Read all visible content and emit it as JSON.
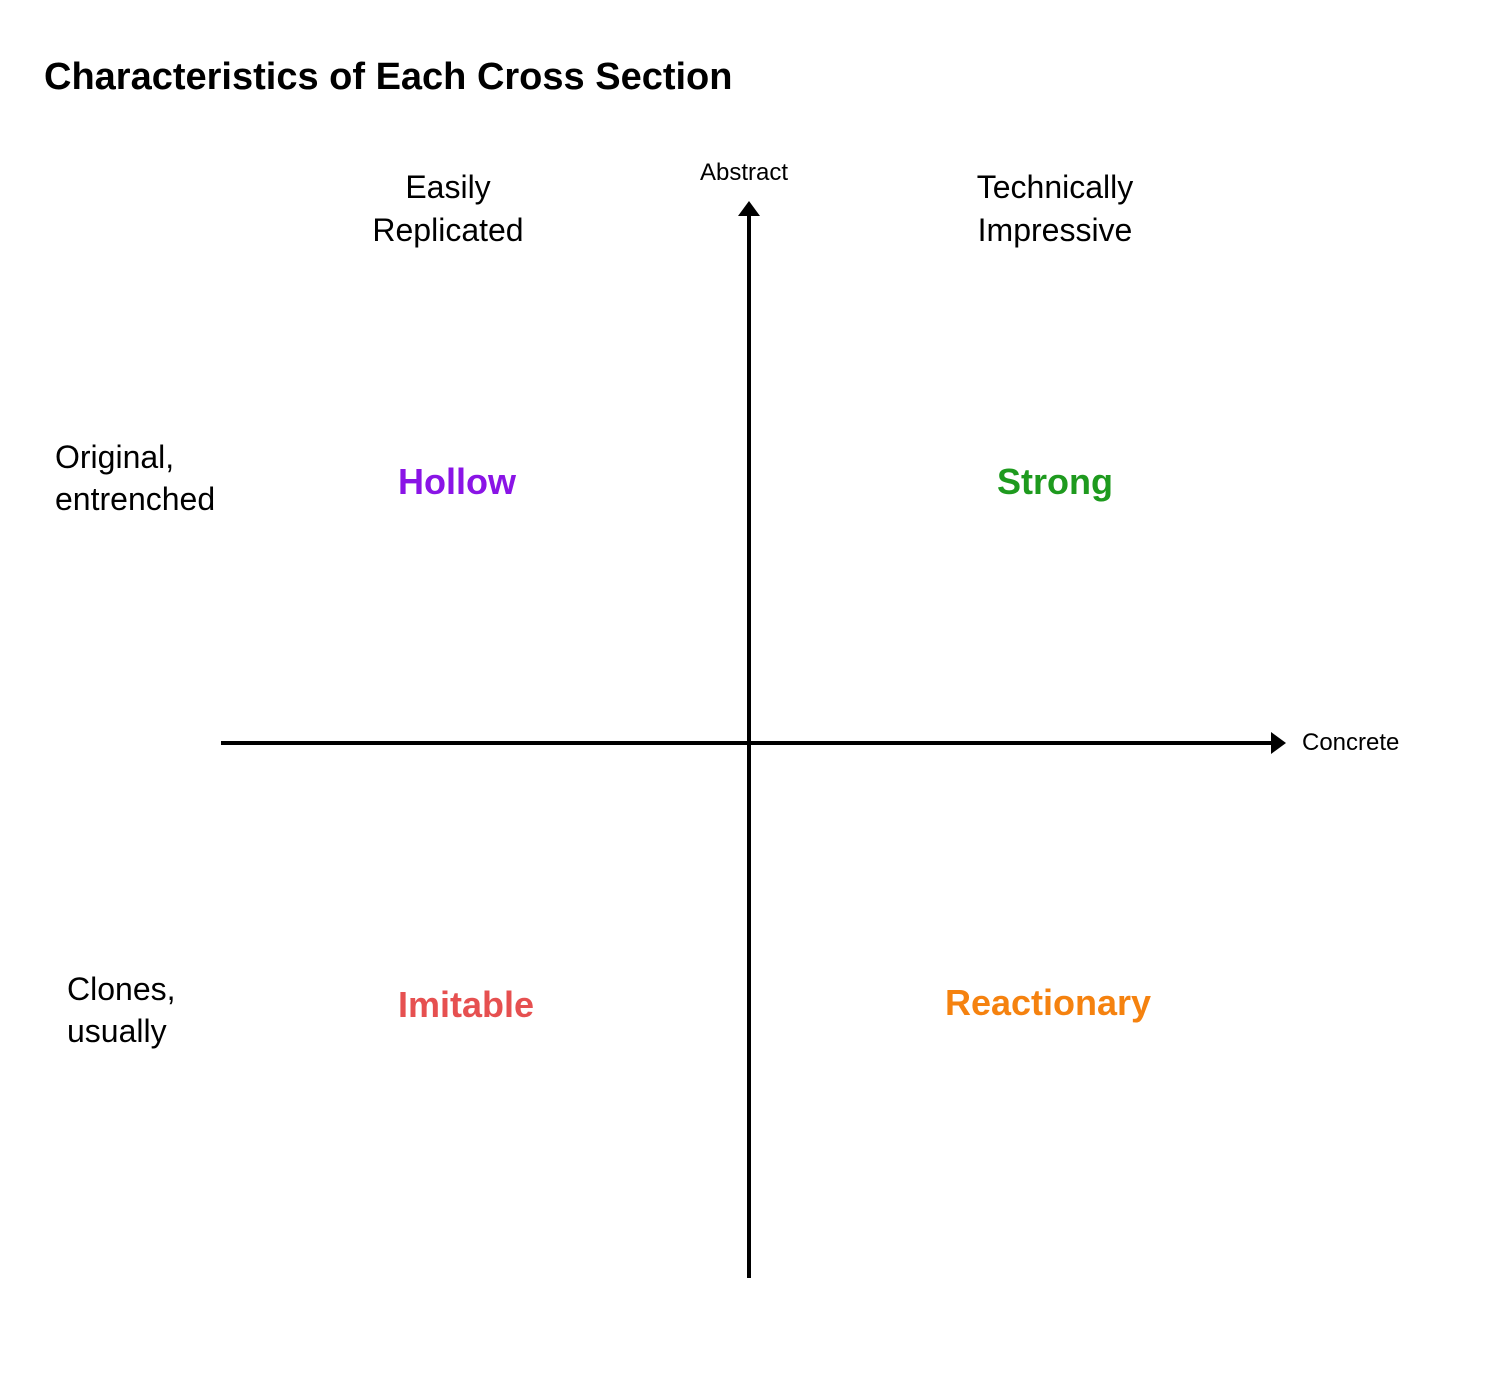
{
  "title": "Characteristics of Each Cross Section",
  "axes": {
    "vertical_label": "Abstract",
    "horizontal_label": "Concrete"
  },
  "columns": {
    "left": [
      "Easily",
      "Replicated"
    ],
    "right": [
      "Technically",
      "Impressive"
    ]
  },
  "rows": {
    "top": [
      "Original,",
      "entrenched"
    ],
    "bottom": [
      "Clones,",
      "usually"
    ]
  },
  "quadrants": {
    "top_left": {
      "label": "Hollow",
      "color": "#8a14e6"
    },
    "top_right": {
      "label": "Strong",
      "color": "#1e9a1e"
    },
    "bottom_left": {
      "label": "Imitable",
      "color": "#e65050"
    },
    "bottom_right": {
      "label": "Reactionary",
      "color": "#f5820f"
    }
  }
}
